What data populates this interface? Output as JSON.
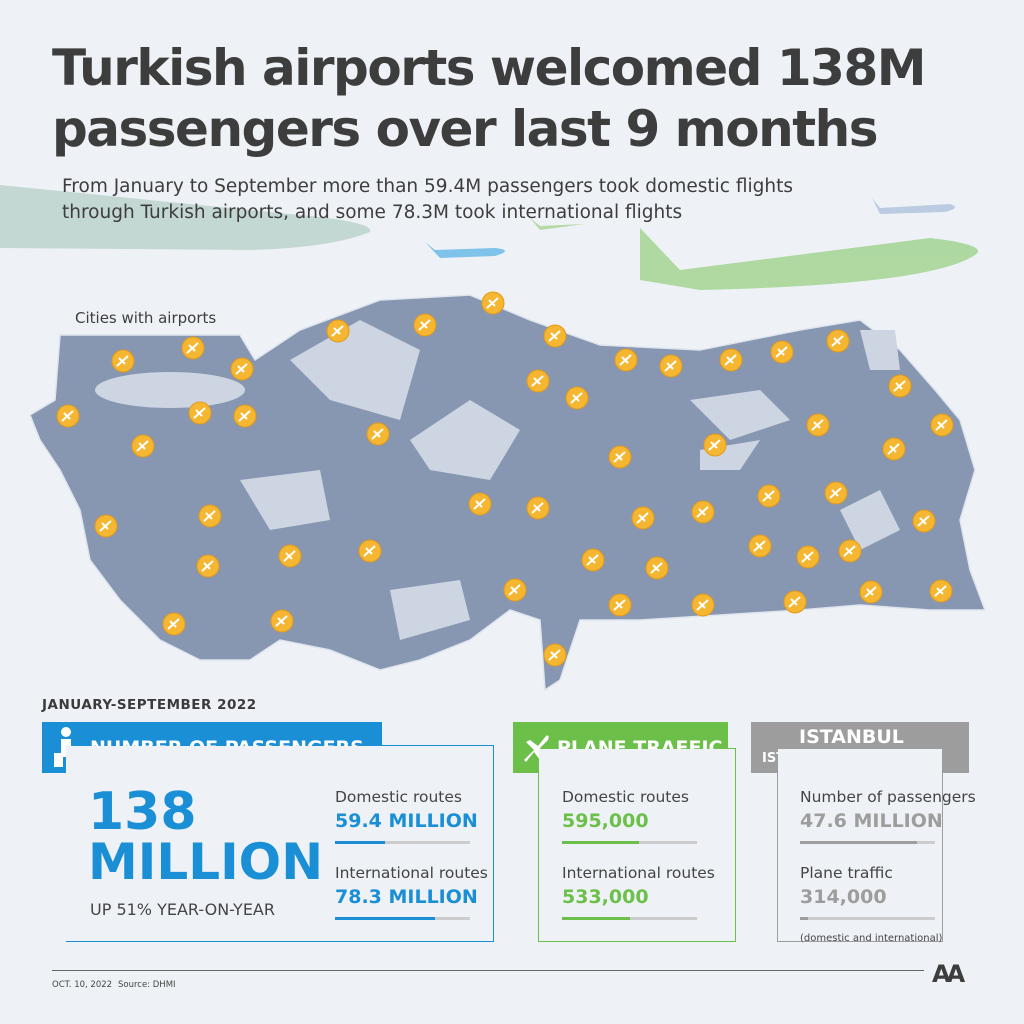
{
  "header": {
    "title": "Turkish airports welcomed 138M passengers over last 9 months",
    "subtitle": "From January to September more than 59.4M passengers took domestic flights through Turkish airports, and some 78.3M took international flights"
  },
  "map": {
    "legend": "Cities with airports"
  },
  "period": "JANUARY-SEPTEMBER 2022",
  "passengers": {
    "title": "NUMBER OF PASSENGERS",
    "total_number": "138",
    "total_unit": "MILLION",
    "change": "UP 51% YEAR-ON-YEAR",
    "rows": [
      {
        "label": "Domestic routes",
        "value": "59.4 MILLION"
      },
      {
        "label": "International routes",
        "value": "78.3 MILLION"
      }
    ]
  },
  "plane_traffic": {
    "title": "PLANE TRAFFIC",
    "rows": [
      {
        "label": "Domestic routes",
        "value": "595,000"
      },
      {
        "label": "International routes",
        "value": "533,000"
      }
    ]
  },
  "istanbul": {
    "title": "ISTANBUL AIRPORT",
    "code": "IST",
    "rows": [
      {
        "label": "Number of passengers",
        "value": "47.6 MILLION"
      },
      {
        "label": "Plane traffic",
        "value": "314,000"
      }
    ],
    "note": "(domestic and international)"
  },
  "footer": {
    "date": "OCT. 10, 2022",
    "source": "Source: DHMI",
    "logo": "AA"
  }
}
